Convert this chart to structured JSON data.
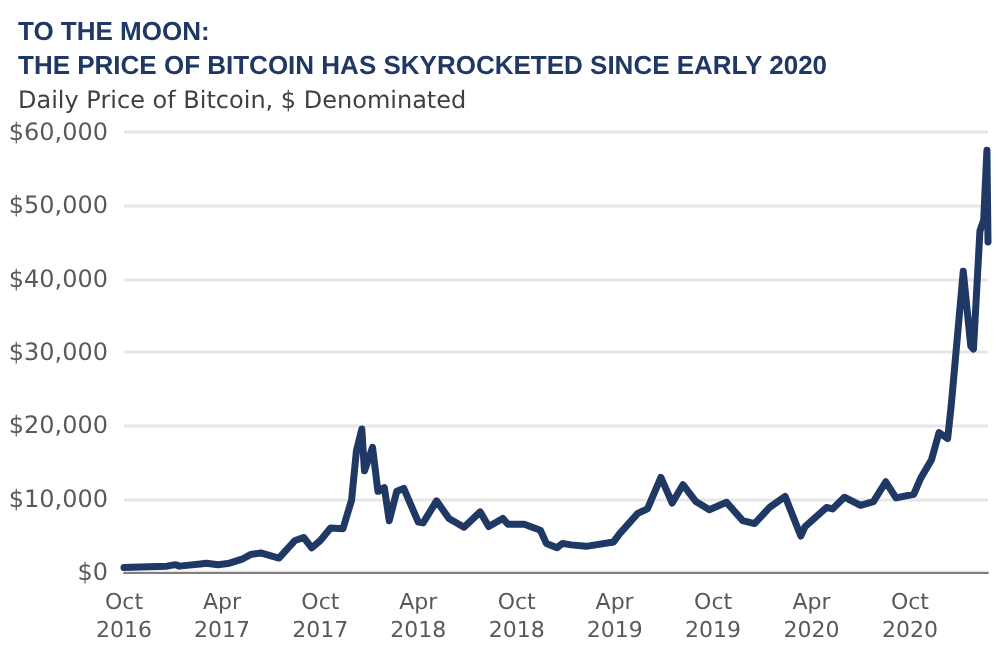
{
  "chart_data": {
    "type": "line",
    "title": "TO THE MOON:\nTHE PRICE OF BITCOIN HAS SKYROCKETED SINCE EARLY 2020",
    "subtitle": "Daily Price of Bitcoin, $ Denominated",
    "x": [
      "2016-10-01",
      "2016-11-15",
      "2016-12-20",
      "2017-01-05",
      "2017-01-12",
      "2017-02-20",
      "2017-03-03",
      "2017-03-25",
      "2017-04-15",
      "2017-05-10",
      "2017-05-25",
      "2017-06-12",
      "2017-07-16",
      "2017-08-15",
      "2017-08-31",
      "2017-09-15",
      "2017-10-01",
      "2017-10-20",
      "2017-11-12",
      "2017-11-28",
      "2017-12-07",
      "2017-12-17",
      "2017-12-22",
      "2018-01-06",
      "2018-01-16",
      "2018-01-28",
      "2018-02-06",
      "2018-02-20",
      "2018-03-05",
      "2018-04-01",
      "2018-04-10",
      "2018-05-05",
      "2018-05-28",
      "2018-06-25",
      "2018-07-25",
      "2018-08-10",
      "2018-09-05",
      "2018-09-15",
      "2018-10-15",
      "2018-11-14",
      "2018-11-25",
      "2018-12-15",
      "2018-12-25",
      "2019-01-10",
      "2019-02-07",
      "2019-03-30",
      "2019-04-10",
      "2019-05-14",
      "2019-06-01",
      "2019-06-26",
      "2019-07-17",
      "2019-08-06",
      "2019-08-30",
      "2019-09-24",
      "2019-10-26",
      "2019-11-25",
      "2019-12-17",
      "2020-01-14",
      "2020-02-12",
      "2020-03-12",
      "2020-03-20",
      "2020-04-29",
      "2020-05-10",
      "2020-06-01",
      "2020-07-01",
      "2020-07-25",
      "2020-08-17",
      "2020-09-05",
      "2020-10-08",
      "2020-10-21",
      "2020-11-10",
      "2020-11-24",
      "2020-12-10",
      "2020-12-17",
      "2021-01-08",
      "2021-01-22",
      "2021-01-27",
      "2021-02-08",
      "2021-02-15",
      "2021-02-21",
      "2021-02-23"
    ],
    "series": [
      {
        "color": "#1f3864",
        "values": [
          600,
          700,
          800,
          1000,
          800,
          1100,
          1200,
          1000,
          1200,
          1800,
          2400,
          2600,
          1900,
          4300,
          4700,
          3300,
          4300,
          6000,
          5900,
          9800,
          16500,
          19500,
          13800,
          17000,
          11000,
          11500,
          7000,
          11000,
          11400,
          6800,
          6700,
          9700,
          7300,
          6100,
          8200,
          6200,
          7300,
          6500,
          6500,
          5700,
          3900,
          3300,
          3900,
          3700,
          3500,
          4100,
          5200,
          8000,
          8600,
          12900,
          9400,
          11900,
          9600,
          8500,
          9500,
          7000,
          6600,
          8800,
          10300,
          4900,
          6200,
          8800,
          8600,
          10200,
          9100,
          9600,
          12300,
          10100,
          10600,
          12800,
          15300,
          19000,
          18200,
          23000,
          41000,
          30800,
          30400,
          46500,
          48000,
          57500,
          45000
        ]
      }
    ],
    "xlim": [
      "2016-10-01",
      "2021-02-23"
    ],
    "xticks": [
      {
        "value": "2016-10-01",
        "label": "Oct\n2016"
      },
      {
        "value": "2017-04-01",
        "label": "Apr\n2017"
      },
      {
        "value": "2017-10-01",
        "label": "Oct\n2017"
      },
      {
        "value": "2018-04-01",
        "label": "Apr\n2018"
      },
      {
        "value": "2018-10-01",
        "label": "Oct\n2018"
      },
      {
        "value": "2019-04-01",
        "label": "Apr\n2019"
      },
      {
        "value": "2019-10-01",
        "label": "Oct\n2019"
      },
      {
        "value": "2020-04-01",
        "label": "Apr\n2020"
      },
      {
        "value": "2020-10-01",
        "label": "Oct\n2020"
      }
    ],
    "ylim": [
      0,
      60000
    ],
    "yticks": [
      {
        "value": 0,
        "label": "$0"
      },
      {
        "value": 10000,
        "label": "$10,000"
      },
      {
        "value": 20000,
        "label": "$20,000"
      },
      {
        "value": 30000,
        "label": "$30,000"
      },
      {
        "value": 40000,
        "label": "$40,000"
      },
      {
        "value": 50000,
        "label": "$50,000"
      },
      {
        "value": 60000,
        "label": "$60,000"
      }
    ],
    "grid": "y",
    "marker": "none",
    "line_style": "solid"
  }
}
